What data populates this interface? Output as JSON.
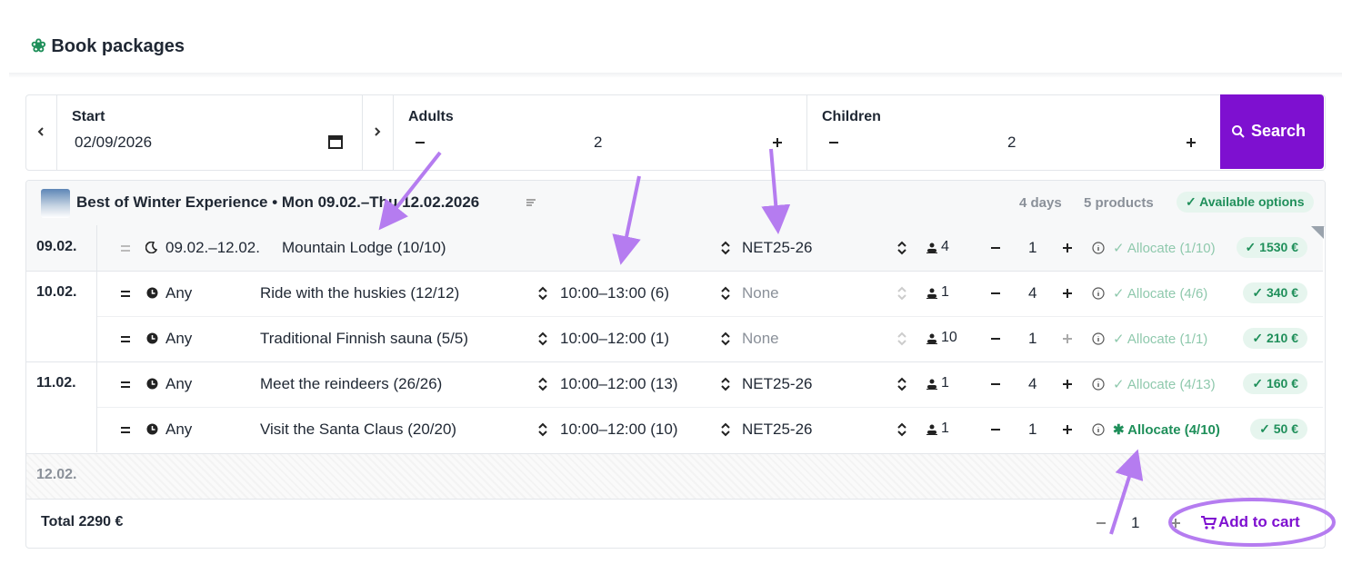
{
  "header": {
    "title": "Book packages"
  },
  "search": {
    "start_label": "Start",
    "start_value": "02/09/2026",
    "adults_label": "Adults",
    "adults_value": "2",
    "children_label": "Children",
    "children_value": "2",
    "button": "Search"
  },
  "package": {
    "title": "Best of Winter Experience • Mon 09.02.–Thu 12.02.2026",
    "days": "4 days",
    "products": "5 products",
    "status": "✓ Available options"
  },
  "rows": [
    {
      "date": "09.02.",
      "time": "09.02.–12.02.",
      "product": "Mountain Lodge (10/10)",
      "rate": "NET25-26",
      "pax": "4",
      "qty": "1",
      "allocate": "✓ Allocate (1/10)",
      "price": "✓ 1530 €"
    },
    {
      "date": "10.02.",
      "time": "Any",
      "product": "Ride with the huskies (12/12)",
      "slot": "10:00–13:00 (6)",
      "rate": "None",
      "pax": "1",
      "qty": "4",
      "allocate": "✓ Allocate (4/6)",
      "price": "✓ 340 €"
    },
    {
      "time": "Any",
      "product": "Traditional Finnish sauna (5/5)",
      "slot": "10:00–12:00 (1)",
      "rate": "None",
      "pax": "10",
      "qty": "1",
      "allocate": "✓ Allocate (1/1)",
      "price": "✓ 210 €"
    },
    {
      "date": "11.02.",
      "time": "Any",
      "product": "Meet the reindeers (26/26)",
      "slot": "10:00–12:00 (13)",
      "rate": "NET25-26",
      "pax": "1",
      "qty": "4",
      "allocate": "✓ Allocate (4/13)",
      "price": "✓ 160 €"
    },
    {
      "time": "Any",
      "product": "Visit the Santa Claus (20/20)",
      "slot": "10:00–12:00 (10)",
      "rate": "NET25-26",
      "pax": "1",
      "qty": "1",
      "allocate": "✱ Allocate (4/10)",
      "price": "✓ 50 €"
    }
  ],
  "empty_day": "12.02.",
  "footer": {
    "total": "Total 2290 €",
    "qty": "1",
    "add_to_cart": "Add to cart"
  }
}
